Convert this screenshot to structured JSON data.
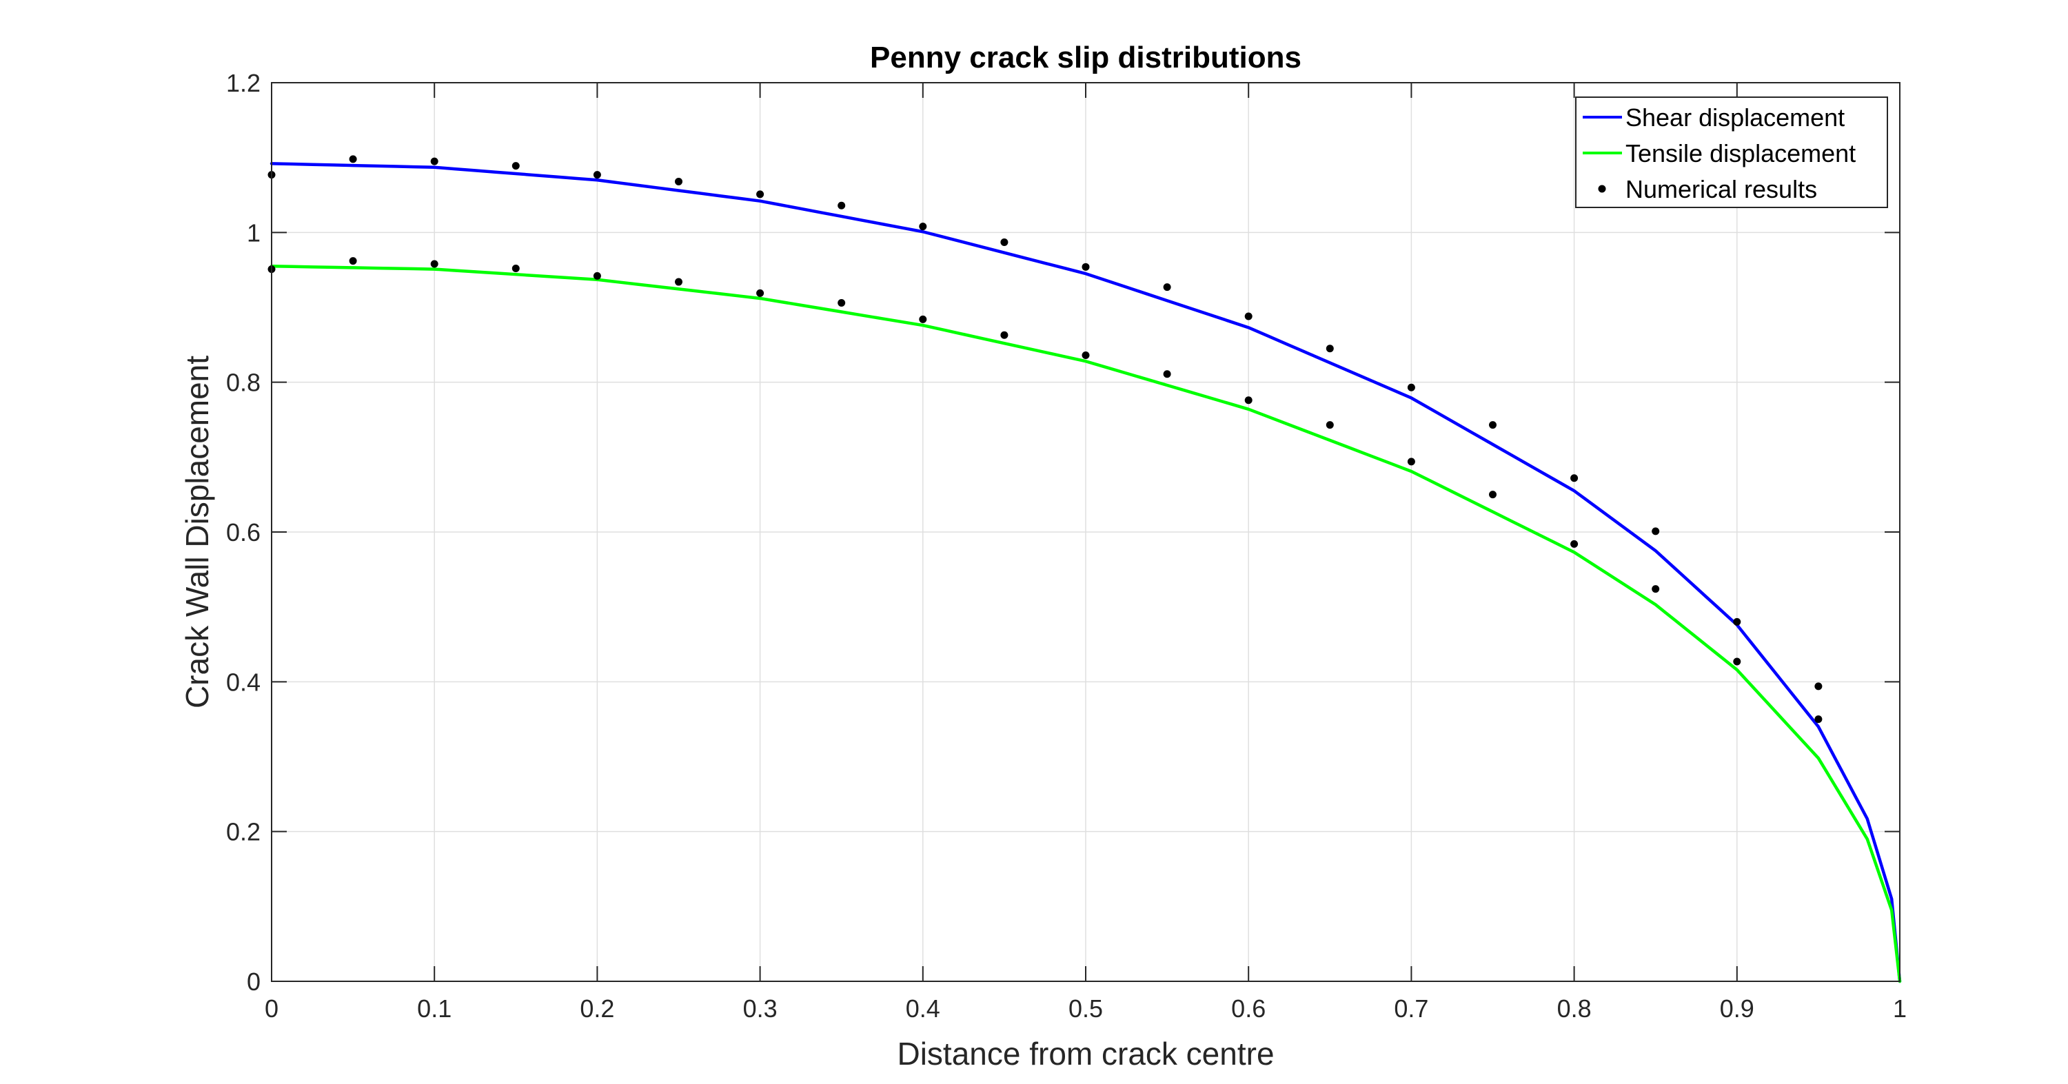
{
  "chart_data": {
    "type": "line",
    "title": "Penny crack slip distributions",
    "xlabel": "Distance from crack centre",
    "ylabel": "Crack Wall Displacement",
    "xlim": [
      0,
      1
    ],
    "ylim": [
      0,
      1.2
    ],
    "x_ticks": [
      0,
      0.1,
      0.2,
      0.3,
      0.4,
      0.5,
      0.6,
      0.7,
      0.8,
      0.9,
      1
    ],
    "x_tick_labels": [
      "0",
      "0.1",
      "0.2",
      "0.3",
      "0.4",
      "0.5",
      "0.6",
      "0.7",
      "0.8",
      "0.9",
      "1"
    ],
    "y_ticks": [
      0,
      0.2,
      0.4,
      0.6,
      0.8,
      1,
      1.2
    ],
    "y_tick_labels": [
      "0",
      "0.2",
      "0.4",
      "0.6",
      "0.8",
      "1",
      "1.2"
    ],
    "grid": true,
    "legend_position": "top-right",
    "series": [
      {
        "name": "Shear displacement",
        "kind": "line",
        "color": "#0000ff",
        "x": [
          0,
          0.1,
          0.2,
          0.3,
          0.4,
          0.5,
          0.6,
          0.7,
          0.8,
          0.85,
          0.9,
          0.95,
          0.98,
          0.995,
          1
        ],
        "y": [
          1.092,
          1.087,
          1.07,
          1.042,
          1.001,
          0.945,
          0.873,
          0.779,
          0.655,
          0.575,
          0.476,
          0.34,
          0.217,
          0.11,
          0
        ]
      },
      {
        "name": "Tensile displacement",
        "kind": "line",
        "color": "#00ff00",
        "x": [
          0,
          0.1,
          0.2,
          0.3,
          0.4,
          0.5,
          0.6,
          0.7,
          0.8,
          0.85,
          0.9,
          0.95,
          0.98,
          0.995,
          1
        ],
        "y": [
          0.955,
          0.951,
          0.937,
          0.912,
          0.876,
          0.828,
          0.764,
          0.681,
          0.573,
          0.503,
          0.416,
          0.298,
          0.19,
          0.095,
          0
        ]
      },
      {
        "name": "Numerical results",
        "kind": "scatter",
        "color": "#000000",
        "points": [
          [
            0,
            1.077
          ],
          [
            0.05,
            1.098
          ],
          [
            0.1,
            1.095
          ],
          [
            0.15,
            1.089
          ],
          [
            0.2,
            1.077
          ],
          [
            0.25,
            1.068
          ],
          [
            0.3,
            1.051
          ],
          [
            0.35,
            1.036
          ],
          [
            0.4,
            1.008
          ],
          [
            0.45,
            0.987
          ],
          [
            0.5,
            0.954
          ],
          [
            0.55,
            0.927
          ],
          [
            0.6,
            0.888
          ],
          [
            0.65,
            0.845
          ],
          [
            0.7,
            0.793
          ],
          [
            0.75,
            0.743
          ],
          [
            0.8,
            0.672
          ],
          [
            0.85,
            0.601
          ],
          [
            0.9,
            0.48
          ],
          [
            0.95,
            0.394
          ],
          [
            0,
            0.951
          ],
          [
            0.05,
            0.962
          ],
          [
            0.1,
            0.958
          ],
          [
            0.15,
            0.952
          ],
          [
            0.2,
            0.942
          ],
          [
            0.25,
            0.934
          ],
          [
            0.3,
            0.919
          ],
          [
            0.35,
            0.906
          ],
          [
            0.4,
            0.884
          ],
          [
            0.45,
            0.863
          ],
          [
            0.5,
            0.836
          ],
          [
            0.55,
            0.811
          ],
          [
            0.6,
            0.776
          ],
          [
            0.65,
            0.743
          ],
          [
            0.7,
            0.694
          ],
          [
            0.75,
            0.65
          ],
          [
            0.8,
            0.584
          ],
          [
            0.85,
            0.524
          ],
          [
            0.9,
            0.427
          ],
          [
            0.95,
            0.35
          ]
        ]
      }
    ]
  }
}
